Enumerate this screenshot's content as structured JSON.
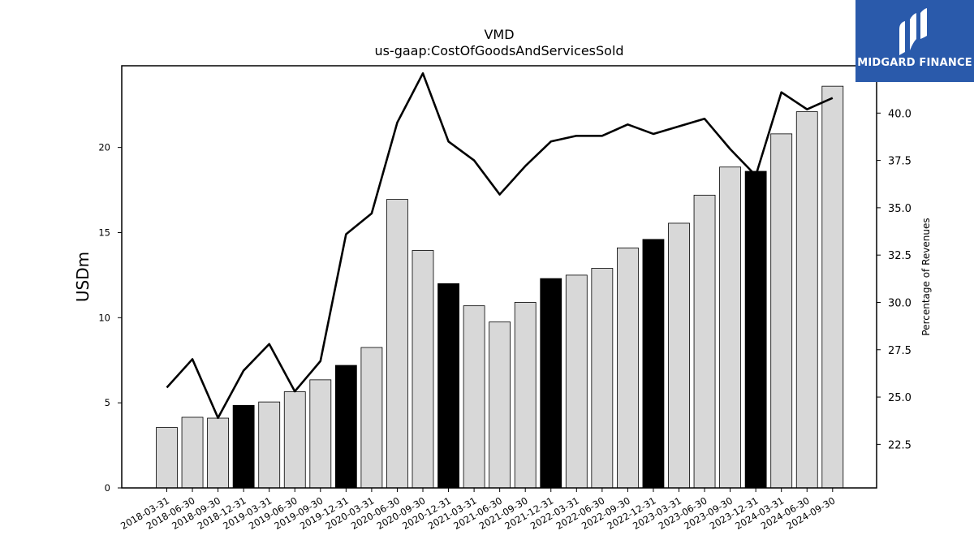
{
  "brand": {
    "name": "MIDGARD FINANCE",
    "background": "#2a5aab"
  },
  "chart_data": {
    "type": "bar",
    "title": "VMD",
    "subtitle": "us-gaap:CostOfGoodsAndServicesSold",
    "ylabel": "USDm",
    "y2label": "Percentage of Revenues",
    "ylim": [
      0,
      24.8
    ],
    "y2lim": [
      20.2,
      42.5
    ],
    "yticks": [
      0,
      5,
      10,
      15,
      20
    ],
    "y2ticks": [
      "22.5",
      "25.0",
      "27.5",
      "30.0",
      "32.5",
      "35.0",
      "37.5",
      "40.0"
    ],
    "categories": [
      "2018-03-31",
      "2018-06-30",
      "2018-09-30",
      "2018-12-31",
      "2019-03-31",
      "2019-06-30",
      "2019-09-30",
      "2019-12-31",
      "2020-03-31",
      "2020-06-30",
      "2020-09-30",
      "2020-12-31",
      "2021-03-31",
      "2021-06-30",
      "2021-09-30",
      "2021-12-31",
      "2022-03-31",
      "2022-06-30",
      "2022-09-30",
      "2022-12-31",
      "2023-03-31",
      "2023-06-30",
      "2023-09-30",
      "2023-12-31",
      "2024-03-31",
      "2024-06-30",
      "2024-09-30"
    ],
    "series": [
      {
        "type": "bar",
        "values": [
          3.55,
          4.15,
          4.1,
          4.85,
          5.05,
          5.65,
          6.35,
          7.2,
          8.25,
          16.95,
          13.95,
          12.0,
          10.7,
          9.75,
          10.9,
          12.3,
          12.5,
          12.9,
          14.1,
          14.6,
          15.55,
          17.2,
          18.85,
          18.6,
          20.8,
          22.1,
          23.6
        ],
        "highlight": [
          false,
          false,
          false,
          true,
          false,
          false,
          false,
          true,
          false,
          false,
          false,
          true,
          false,
          false,
          false,
          true,
          false,
          false,
          false,
          true,
          false,
          false,
          false,
          true,
          false,
          false,
          false
        ],
        "color": "#d8d8d8",
        "highlight_color": "#000000"
      },
      {
        "type": "line",
        "axis": "right",
        "values": [
          25.5,
          27.0,
          23.9,
          26.4,
          27.8,
          25.3,
          26.9,
          33.6,
          34.7,
          39.5,
          42.1,
          38.5,
          37.5,
          35.7,
          37.2,
          38.5,
          38.8,
          38.8,
          39.4,
          38.9,
          39.3,
          39.7,
          38.1,
          36.7,
          41.1,
          40.2,
          40.8
        ],
        "color": "#000000"
      }
    ]
  }
}
